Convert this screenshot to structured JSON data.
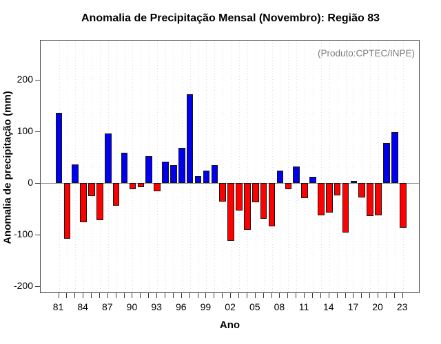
{
  "title": "Anomalia de Precipitação Mensal (Novembro): Região 83",
  "annotation": "(Produto:CPTEC/INPE)",
  "chart_data": {
    "type": "bar",
    "title": "Anomalia de Precipitação Mensal (Novembro): Região 83",
    "xlabel": "Ano",
    "ylabel": "Anomalia de precipitação (mm)",
    "source_note": "(Produto:CPTEC/INPE)",
    "categories": [
      1981,
      1982,
      1983,
      1984,
      1985,
      1986,
      1987,
      1988,
      1989,
      1990,
      1991,
      1992,
      1993,
      1994,
      1995,
      1996,
      1997,
      1998,
      1999,
      2000,
      2001,
      2002,
      2003,
      2004,
      2005,
      2006,
      2007,
      2008,
      2009,
      2010,
      2011,
      2012,
      2013,
      2014,
      2015,
      2016,
      2017,
      2018,
      2019,
      2020,
      2021,
      2022,
      2023
    ],
    "values": [
      136,
      -108,
      35,
      -76,
      -26,
      -73,
      96,
      -44,
      58,
      -12,
      -9,
      51,
      -17,
      41,
      34,
      67,
      172,
      13,
      24,
      34,
      -36,
      -113,
      -54,
      -91,
      -38,
      -70,
      -84,
      24,
      -13,
      32,
      -30,
      11,
      -63,
      -58,
      -24,
      -97,
      3,
      -29,
      -65,
      -63,
      77,
      98,
      -87
    ],
    "x_tick_labels": [
      "81",
      "84",
      "87",
      "90",
      "93",
      "96",
      "99",
      "02",
      "05",
      "08",
      "11",
      "14",
      "17",
      "20",
      "23"
    ],
    "x_tick_label_step": 3,
    "yticks": [
      -200,
      -100,
      0,
      100,
      200
    ],
    "ylim": [
      -215,
      275
    ],
    "grid": "vertical-dotted",
    "legend": "none",
    "positive_color": "#0000ee",
    "negative_color": "#ff0000",
    "bar_border_color": "#151515",
    "zero_line_color": "#8f8f8f"
  }
}
